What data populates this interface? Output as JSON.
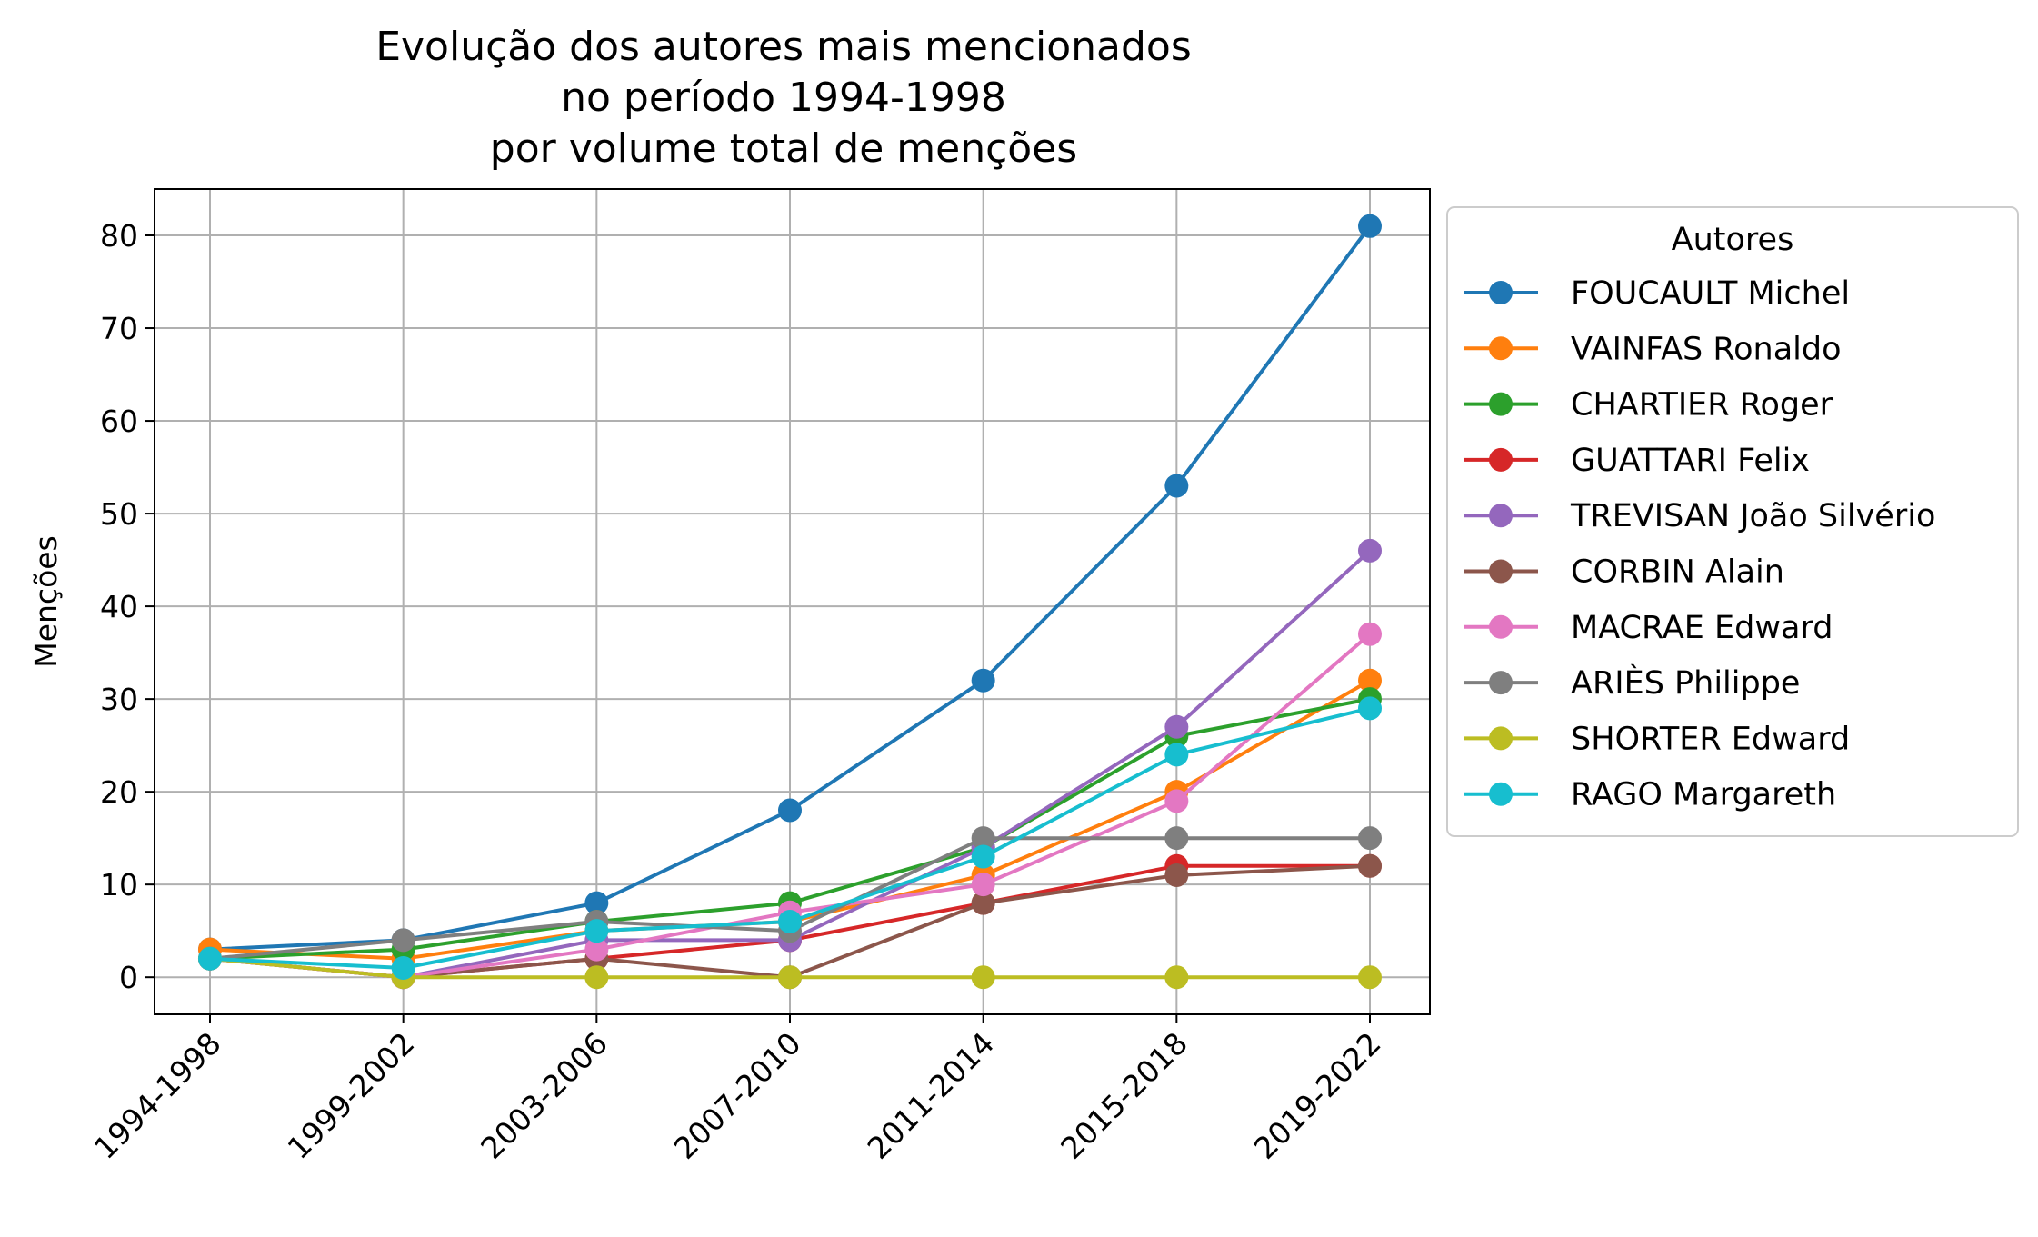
{
  "chart_data": {
    "type": "line",
    "title_lines": [
      "Evolução dos autores mais mencionados",
      "no período 1994-1998",
      "por volume total de menções"
    ],
    "xlabel": "",
    "ylabel": "Menções",
    "categories": [
      "1994-1998",
      "1999-2002",
      "2003-2006",
      "2007-2010",
      "2011-2014",
      "2015-2018",
      "2019-2022"
    ],
    "ylim": [
      -4,
      85
    ],
    "yticks": [
      0,
      10,
      20,
      30,
      40,
      50,
      60,
      70,
      80
    ],
    "grid": true,
    "legend": {
      "title": "Autores",
      "placement": "outside-right"
    },
    "series": [
      {
        "name": "FOUCAULT Michel",
        "color": "#1f77b4",
        "values": [
          3,
          4,
          8,
          18,
          32,
          53,
          81
        ]
      },
      {
        "name": "VAINFAS Ronaldo",
        "color": "#ff7f0e",
        "values": [
          3,
          2,
          5,
          6,
          11,
          20,
          32
        ]
      },
      {
        "name": "CHARTIER Roger",
        "color": "#2ca02c",
        "values": [
          2,
          3,
          6,
          8,
          14,
          26,
          30
        ]
      },
      {
        "name": "GUATTARI Felix",
        "color": "#d62728",
        "values": [
          2,
          0,
          2,
          4,
          8,
          12,
          12
        ]
      },
      {
        "name": "TREVISAN João Silvério",
        "color": "#9467bd",
        "values": [
          2,
          0,
          4,
          4,
          14,
          27,
          46
        ]
      },
      {
        "name": "CORBIN Alain",
        "color": "#8c564b",
        "values": [
          2,
          0,
          2,
          0,
          8,
          11,
          12
        ]
      },
      {
        "name": "MACRAE Edward",
        "color": "#e377c2",
        "values": [
          2,
          0,
          3,
          7,
          10,
          19,
          37
        ]
      },
      {
        "name": "ARIÈS Philippe",
        "color": "#7f7f7f",
        "values": [
          2,
          4,
          6,
          5,
          15,
          15,
          15
        ]
      },
      {
        "name": "SHORTER Edward",
        "color": "#bcbd22",
        "values": [
          2,
          0,
          0,
          0,
          0,
          0,
          0
        ]
      },
      {
        "name": "RAGO Margareth",
        "color": "#17becf",
        "values": [
          2,
          1,
          5,
          6,
          13,
          24,
          29
        ]
      }
    ]
  }
}
